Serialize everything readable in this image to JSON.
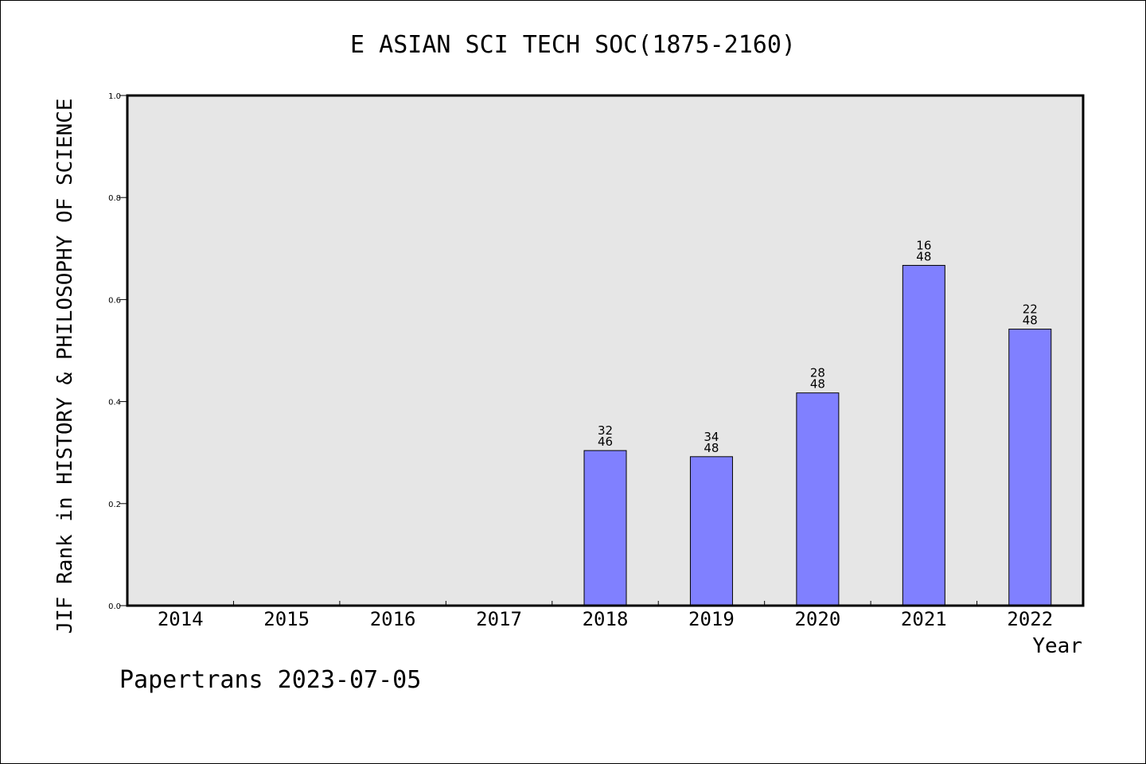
{
  "chart_data": {
    "type": "bar",
    "title": "E ASIAN SCI TECH SOC(1875-2160)",
    "ylabel": "JIF Rank in HISTORY & PHILOSOPHY OF SCIENCE",
    "xlabel": "Year",
    "ylim": [
      0,
      1.0
    ],
    "yticks": [
      "0.0",
      "0.2",
      "0.4",
      "0.6",
      "0.8",
      "1.0"
    ],
    "categories": [
      "2014",
      "2015",
      "2016",
      "2017",
      "2018",
      "2019",
      "2020",
      "2021",
      "2022"
    ],
    "values": [
      null,
      null,
      null,
      null,
      0.304,
      0.292,
      0.417,
      0.667,
      0.542
    ],
    "labels": [
      null,
      null,
      null,
      null,
      {
        "rank": "32",
        "total": "46"
      },
      {
        "rank": "34",
        "total": "48"
      },
      {
        "rank": "28",
        "total": "48"
      },
      {
        "rank": "16",
        "total": "48"
      },
      {
        "rank": "22",
        "total": "48"
      }
    ],
    "bar_color": "#8080ff",
    "plot_background": "#e6e6e6",
    "grid": false,
    "legend": "none"
  },
  "footer": "Papertrans 2023-07-05"
}
